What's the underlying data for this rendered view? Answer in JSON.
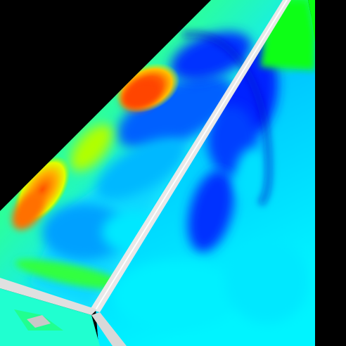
{
  "scene": {
    "subject": "3d-simulation-contour-render",
    "background_color": "#000000",
    "colormap": [
      "#0000ff",
      "#0050ff",
      "#00c8ff",
      "#00ffff",
      "#00ff40",
      "#00ff00",
      "#c8ff00",
      "#ffff00",
      "#ff8000",
      "#ff3000"
    ],
    "edge_color": "#e8e8e8"
  }
}
